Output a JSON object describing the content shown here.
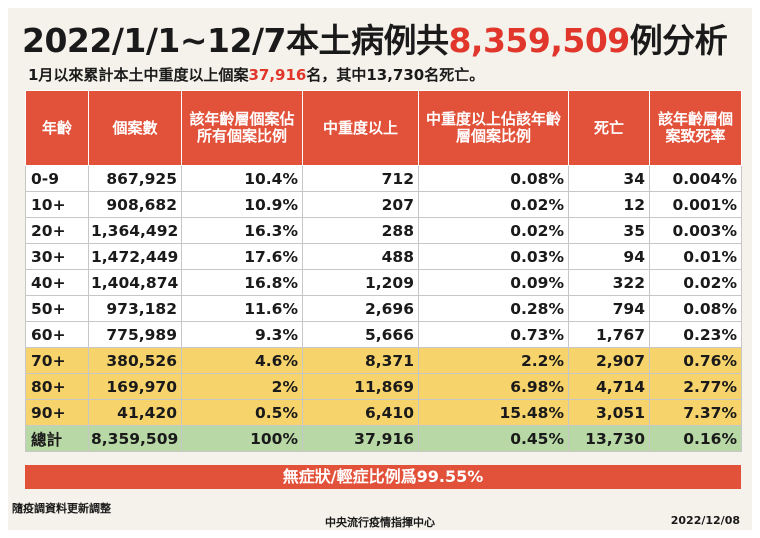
{
  "title": {
    "prefix": "2022/1/1~12/7本土病例共",
    "highlight": "8,359,509",
    "suffix": "例分析"
  },
  "subtitle": {
    "prefix": "1月以來累計本土中重度以上個案",
    "highlight": "37,916",
    "suffix": "名，其中13,730名死亡。"
  },
  "table": {
    "headers": [
      "年齡",
      "個案數",
      "該年齡層個案佔所有個案比例",
      "中重度以上",
      "中重度以上佔該年齡層個案比例",
      "死亡",
      "該年齡層個案致死率"
    ],
    "rows": [
      {
        "age": "0-9",
        "cases": "867,925",
        "share": "10.4%",
        "severe": "712",
        "severe_pct": "0.08%",
        "deaths": "34",
        "cfr": "0.004%"
      },
      {
        "age": "10+",
        "cases": "908,682",
        "share": "10.9%",
        "severe": "207",
        "severe_pct": "0.02%",
        "deaths": "12",
        "cfr": "0.001%"
      },
      {
        "age": "20+",
        "cases": "1,364,492",
        "share": "16.3%",
        "severe": "288",
        "severe_pct": "0.02%",
        "deaths": "35",
        "cfr": "0.003%"
      },
      {
        "age": "30+",
        "cases": "1,472,449",
        "share": "17.6%",
        "severe": "488",
        "severe_pct": "0.03%",
        "deaths": "94",
        "cfr": "0.01%"
      },
      {
        "age": "40+",
        "cases": "1,404,874",
        "share": "16.8%",
        "severe": "1,209",
        "severe_pct": "0.09%",
        "deaths": "322",
        "cfr": "0.02%"
      },
      {
        "age": "50+",
        "cases": "973,182",
        "share": "11.6%",
        "severe": "2,696",
        "severe_pct": "0.28%",
        "deaths": "794",
        "cfr": "0.08%"
      },
      {
        "age": "60+",
        "cases": "775,989",
        "share": "9.3%",
        "severe": "5,666",
        "severe_pct": "0.73%",
        "deaths": "1,767",
        "cfr": "0.23%"
      },
      {
        "age": "70+",
        "cases": "380,526",
        "share": "4.6%",
        "severe": "8,371",
        "severe_pct": "2.2%",
        "deaths": "2,907",
        "cfr": "0.76%"
      },
      {
        "age": "80+",
        "cases": "169,970",
        "share": "2%",
        "severe": "11,869",
        "severe_pct": "6.98%",
        "deaths": "4,714",
        "cfr": "2.77%"
      },
      {
        "age": "90+",
        "cases": "41,420",
        "share": "0.5%",
        "severe": "6,410",
        "severe_pct": "15.48%",
        "deaths": "3,051",
        "cfr": "7.37%"
      }
    ],
    "total": {
      "age": "總計",
      "cases": "8,359,509",
      "share": "100%",
      "severe": "37,916",
      "severe_pct": "0.45%",
      "deaths": "13,730",
      "cfr": "0.16%"
    }
  },
  "banner": "無症狀/輕症比例爲99.55%",
  "footer": {
    "note": "隨疫調資料更新調整",
    "org": "中央流行疫情指揮中心",
    "date": "2022/12/08"
  },
  "colors": {
    "accent": "#e2513a",
    "highlight_text": "#e0362b",
    "elder_rows": "#f7d46b",
    "total_row": "#b8d8a6"
  }
}
